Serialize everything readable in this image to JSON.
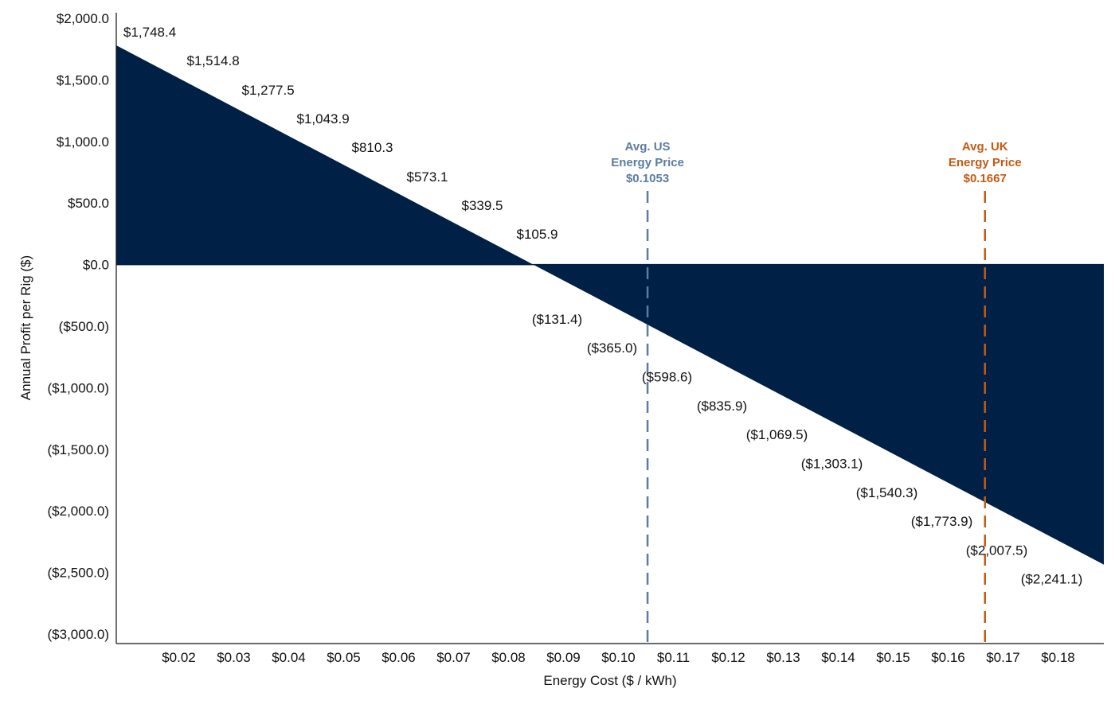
{
  "chart_data": {
    "type": "area",
    "xlabel": "Energy Cost ($ / kWh)",
    "ylabel": "Annual Profit per Rig ($)",
    "ylim": [
      -3000,
      2000
    ],
    "y_ticks": [
      {
        "value": 2000,
        "label": "$2,000.0"
      },
      {
        "value": 1500,
        "label": "$1,500.0"
      },
      {
        "value": 1000,
        "label": "$1,000.0"
      },
      {
        "value": 500,
        "label": "$500.0"
      },
      {
        "value": 0,
        "label": "$0.0"
      },
      {
        "value": -500,
        "label": "($500.0)"
      },
      {
        "value": -1000,
        "label": "($1,000.0)"
      },
      {
        "value": -1500,
        "label": "($1,500.0)"
      },
      {
        "value": -2000,
        "label": "($2,000.0)"
      },
      {
        "value": -2500,
        "label": "($2,500.0)"
      },
      {
        "value": -3000,
        "label": "($3,000.0)"
      }
    ],
    "x_ticks": [
      {
        "value": 0.02,
        "label": "$0.02"
      },
      {
        "value": 0.03,
        "label": "$0.03"
      },
      {
        "value": 0.04,
        "label": "$0.04"
      },
      {
        "value": 0.05,
        "label": "$0.05"
      },
      {
        "value": 0.06,
        "label": "$0.06"
      },
      {
        "value": 0.07,
        "label": "$0.07"
      },
      {
        "value": 0.08,
        "label": "$0.08"
      },
      {
        "value": 0.09,
        "label": "$0.09"
      },
      {
        "value": 0.1,
        "label": "$0.10"
      },
      {
        "value": 0.11,
        "label": "$0.11"
      },
      {
        "value": 0.12,
        "label": "$0.12"
      },
      {
        "value": 0.13,
        "label": "$0.13"
      },
      {
        "value": 0.14,
        "label": "$0.14"
      },
      {
        "value": 0.15,
        "label": "$0.15"
      },
      {
        "value": 0.16,
        "label": "$0.16"
      },
      {
        "value": 0.17,
        "label": "$0.17"
      },
      {
        "value": 0.18,
        "label": "$0.18"
      }
    ],
    "points": [
      {
        "x": 0.01,
        "y": 1748.4,
        "label": "$1,748.4"
      },
      {
        "x": 0.02,
        "y": 1514.8,
        "label": "$1,514.8"
      },
      {
        "x": 0.03,
        "y": 1277.5,
        "label": "$1,277.5"
      },
      {
        "x": 0.04,
        "y": 1043.9,
        "label": "$1,043.9"
      },
      {
        "x": 0.05,
        "y": 810.3,
        "label": "$810.3"
      },
      {
        "x": 0.06,
        "y": 573.1,
        "label": "$573.1"
      },
      {
        "x": 0.07,
        "y": 339.5,
        "label": "$339.5"
      },
      {
        "x": 0.08,
        "y": 105.9,
        "label": "$105.9"
      },
      {
        "x": 0.09,
        "y": -131.4,
        "label": "($131.4)"
      },
      {
        "x": 0.1,
        "y": -365.0,
        "label": "($365.0)"
      },
      {
        "x": 0.11,
        "y": -598.6,
        "label": "($598.6)"
      },
      {
        "x": 0.12,
        "y": -835.9,
        "label": "($835.9)"
      },
      {
        "x": 0.13,
        "y": -1069.5,
        "label": "($1,069.5)"
      },
      {
        "x": 0.14,
        "y": -1303.1,
        "label": "($1,303.1)"
      },
      {
        "x": 0.15,
        "y": -1540.3,
        "label": "($1,540.3)"
      },
      {
        "x": 0.16,
        "y": -1773.9,
        "label": "($1,773.9)"
      },
      {
        "x": 0.17,
        "y": -2007.5,
        "label": "($2,007.5)"
      },
      {
        "x": 0.18,
        "y": -2241.1,
        "label": "($2,241.1)"
      }
    ],
    "reference_lines": [
      {
        "x": 0.1053,
        "lines": [
          "Avg. US",
          "Energy Price",
          "$0.1053"
        ],
        "color": "#5b7ca3"
      },
      {
        "x": 0.1667,
        "lines": [
          "Avg. UK",
          "Energy Price",
          "$0.1667"
        ],
        "color": "#c55a11"
      }
    ],
    "fill_color": "#002046",
    "grid": false,
    "legend": "none"
  }
}
